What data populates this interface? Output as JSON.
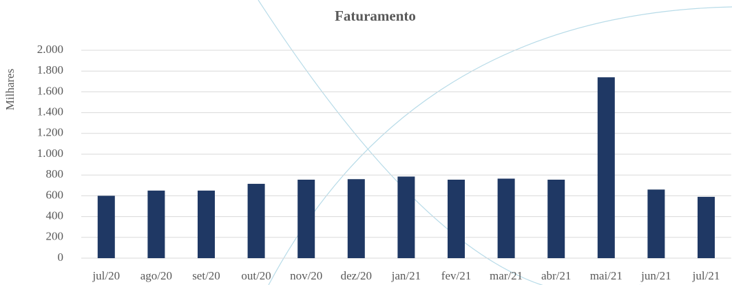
{
  "chart_data": {
    "type": "bar",
    "title": "Faturamento",
    "y_label": "Milhares",
    "categories": [
      "jul/20",
      "ago/20",
      "set/20",
      "out/20",
      "nov/20",
      "dez/20",
      "jan/21",
      "fev/21",
      "mar/21",
      "abr/21",
      "mai/21",
      "jun/21",
      "jul/21"
    ],
    "values": [
      600,
      650,
      650,
      715,
      755,
      760,
      785,
      755,
      765,
      755,
      1740,
      660,
      590
    ],
    "color": "#1f3864",
    "ylim": [
      0,
      2000
    ],
    "yticks": [
      0,
      200,
      400,
      600,
      800,
      {
        "value": 1000,
        "label": "1.000"
      },
      {
        "value": 1200,
        "label": "1.200"
      },
      {
        "value": 1400,
        "label": "1.400"
      },
      {
        "value": 1600,
        "label": "1.600"
      },
      {
        "value": 1800,
        "label": "1.800"
      },
      {
        "value": 2000,
        "label": "2.000"
      }
    ],
    "grid": true
  }
}
